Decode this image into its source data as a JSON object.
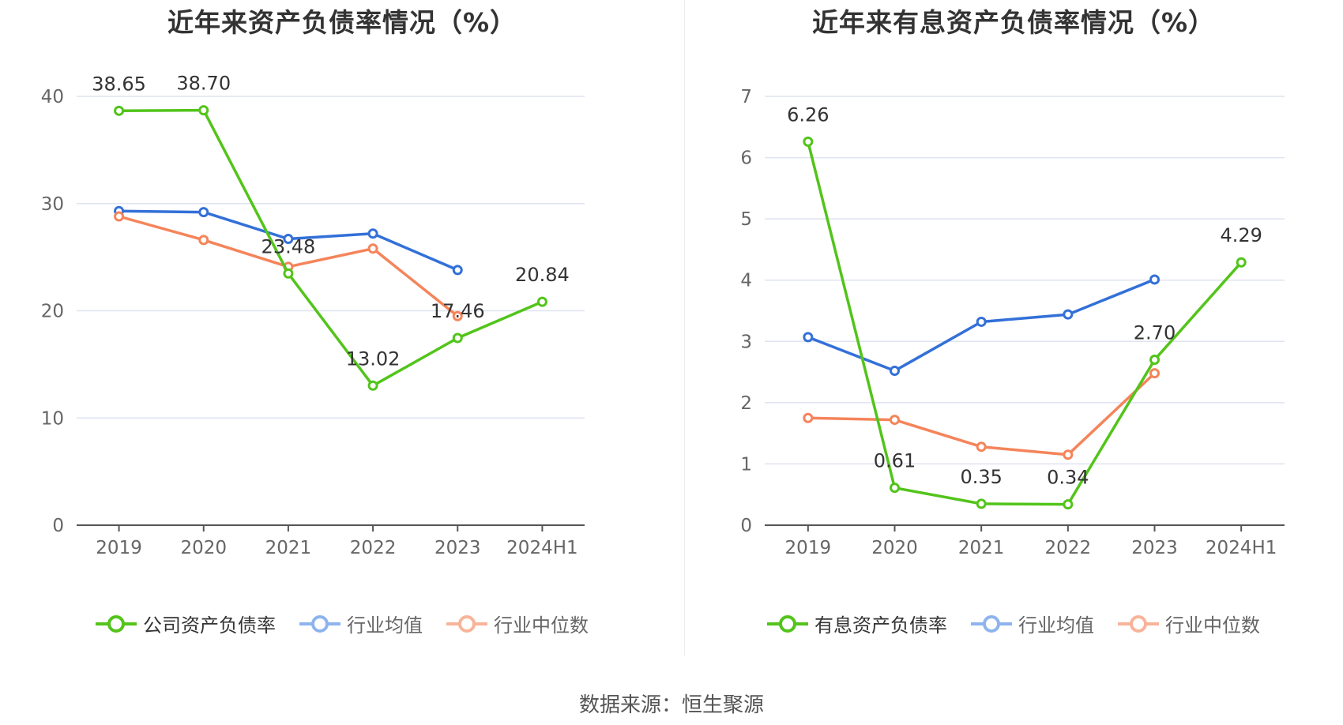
{
  "source_label": "数据来源：恒生聚源",
  "colors": {
    "company": "#52c41a",
    "avg": "#3370d8",
    "median": "#f5845a"
  },
  "chart_data": [
    {
      "type": "line",
      "title": "近年来资产负债率情况（%）",
      "categories": [
        "2019",
        "2020",
        "2021",
        "2022",
        "2023",
        "2024H1"
      ],
      "ylim": [
        0,
        40
      ],
      "yticks": [
        0,
        10,
        20,
        30,
        40
      ],
      "grid": true,
      "legend_position": "bottom",
      "series": [
        {
          "name": "公司资产负债率",
          "values": [
            38.65,
            38.7,
            23.48,
            13.02,
            17.46,
            20.84
          ],
          "labels": [
            "38.65",
            "38.70",
            "23.48",
            "13.02",
            "17.46",
            "20.84"
          ]
        },
        {
          "name": "行业均值",
          "values": [
            29.3,
            29.2,
            26.7,
            27.2,
            23.8,
            null
          ]
        },
        {
          "name": "行业中位数",
          "values": [
            28.8,
            26.6,
            24.1,
            25.8,
            19.5,
            null
          ]
        }
      ]
    },
    {
      "type": "line",
      "title": "近年来有息资产负债率情况（%）",
      "categories": [
        "2019",
        "2020",
        "2021",
        "2022",
        "2023",
        "2024H1"
      ],
      "ylim": [
        0,
        7
      ],
      "yticks": [
        0,
        1,
        2,
        3,
        4,
        5,
        6,
        7
      ],
      "grid": true,
      "legend_position": "bottom",
      "series": [
        {
          "name": "有息资产负债率",
          "values": [
            6.26,
            0.61,
            0.35,
            0.34,
            2.7,
            4.29
          ],
          "labels": [
            "6.26",
            "0.61",
            "0.35",
            "0.34",
            "2.70",
            "4.29"
          ]
        },
        {
          "name": "行业均值",
          "values": [
            3.07,
            2.52,
            3.32,
            3.44,
            4.01,
            null
          ]
        },
        {
          "name": "行业中位数",
          "values": [
            1.75,
            1.72,
            1.28,
            1.15,
            2.48,
            null
          ]
        }
      ]
    }
  ]
}
